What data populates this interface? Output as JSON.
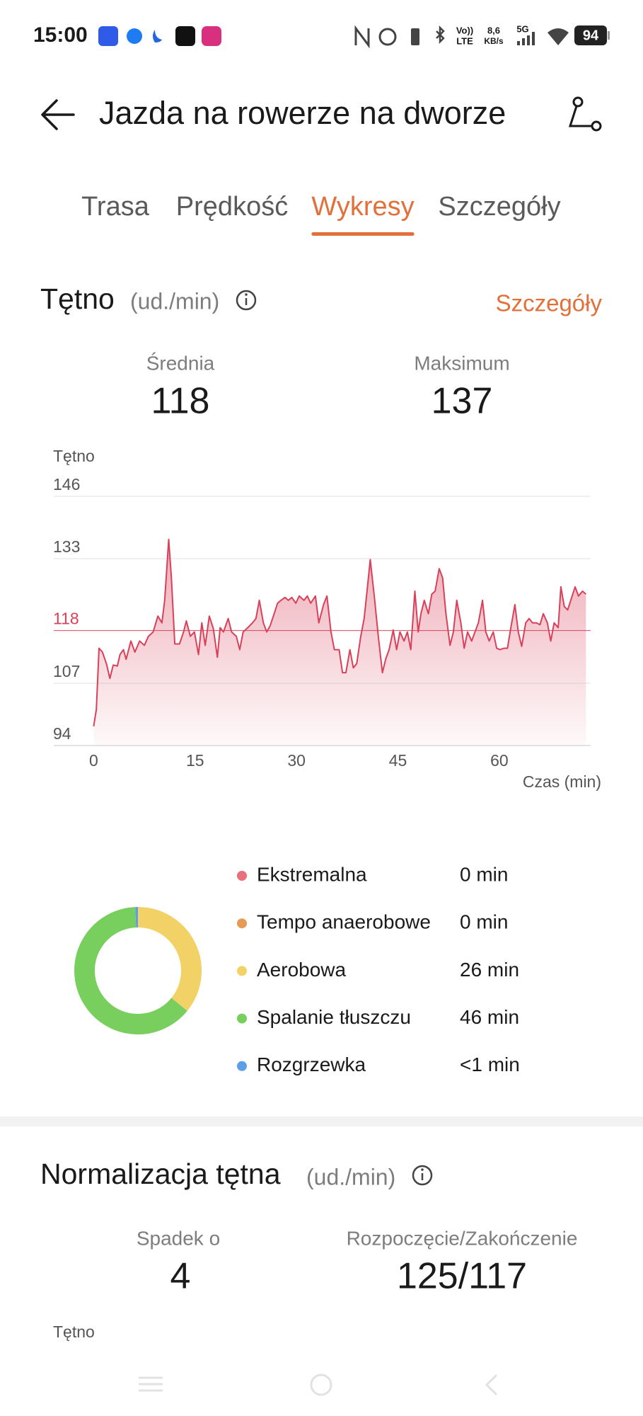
{
  "status_bar": {
    "time": "15:00",
    "vo": "Vo))",
    "lte": "LTE",
    "speed": "8,6",
    "speed_unit": "KB/s",
    "network": "5G",
    "battery": "94"
  },
  "header": {
    "title": "Jazda na rowerze na dworze"
  },
  "tabs": [
    {
      "label": "Trasa"
    },
    {
      "label": "Prędkość"
    },
    {
      "label": "Wykresy"
    },
    {
      "label": "Szczegóły"
    }
  ],
  "active_tab": 2,
  "heart_rate": {
    "title": "Tętno",
    "unit": "(ud./min)",
    "details_link": "Szczegóły",
    "stats": [
      {
        "label": "Średnia",
        "value": 118
      },
      {
        "label": "Maksimum",
        "value": 137
      }
    ]
  },
  "chart_data": [
    {
      "type": "line",
      "y_label": "Tętno",
      "x_label": "Czas (min)",
      "color": "#d9415a",
      "average": 118,
      "average_color": "#d9415a",
      "xlim": [
        -5.9,
        73.5
      ],
      "xticks": [
        0,
        15,
        30,
        45,
        60
      ],
      "ylim": [
        94,
        146
      ],
      "yticks": [
        94,
        107,
        118,
        133,
        146
      ],
      "grid": true,
      "x": [
        0,
        0.4,
        0.8,
        1.3,
        1.9,
        2.4,
        2.9,
        3.5,
        3.9,
        4.4,
        4.8,
        5.5,
        6.1,
        6.8,
        7.5,
        8.1,
        8.8,
        9.5,
        10.1,
        10.5,
        11.1,
        11.5,
        12,
        12.7,
        13.3,
        13.7,
        14.3,
        14.9,
        15.5,
        16,
        16.5,
        17.1,
        17.7,
        18.3,
        18.7,
        19.2,
        19.9,
        20.4,
        21.1,
        21.6,
        22.1,
        22.8,
        23.5,
        24,
        24.5,
        25.1,
        25.6,
        26.1,
        26.7,
        27.2,
        27.7,
        28.3,
        28.8,
        29.3,
        29.9,
        30.4,
        31.1,
        31.6,
        32.1,
        32.8,
        33.3,
        34,
        34.5,
        35.1,
        35.6,
        36.3,
        36.8,
        37.3,
        37.9,
        38.4,
        38.9,
        39.5,
        40,
        40.5,
        40.9,
        41.5,
        42.1,
        42.7,
        43.2,
        43.7,
        44.3,
        44.8,
        45.3,
        45.9,
        46.4,
        46.9,
        47.5,
        48,
        48.4,
        48.9,
        49.5,
        50,
        50.5,
        51.1,
        51.6,
        52.1,
        52.7,
        53.2,
        53.7,
        54.3,
        54.8,
        55.3,
        55.9,
        56.4,
        56.9,
        57.5,
        58,
        58.5,
        59.1,
        59.6,
        60.1,
        60.7,
        61.2,
        61.7,
        62.3,
        62.8,
        63.3,
        63.9,
        64.4,
        64.9,
        65.5,
        66,
        66.5,
        67.1,
        67.6,
        68.1,
        68.7,
        69.1,
        69.6,
        70.1,
        70.7,
        71.2,
        71.7,
        72.3,
        72.8
      ],
      "values": [
        98,
        101.5,
        114.3,
        113.5,
        111,
        108,
        110.8,
        110.6,
        113,
        114,
        112,
        115.8,
        113.5,
        115.8,
        114.9,
        116.8,
        117.7,
        121,
        119.6,
        124.3,
        137,
        129,
        115.2,
        115.2,
        117.7,
        120,
        116.8,
        117.7,
        113,
        119.6,
        114.9,
        121,
        118.4,
        112.4,
        118.6,
        117.7,
        120.5,
        117.7,
        116.8,
        114,
        117.7,
        118.6,
        119.6,
        120.5,
        124.3,
        119.6,
        117.7,
        119,
        121.5,
        123.7,
        124.3,
        124.9,
        124.3,
        124.9,
        123.7,
        125.2,
        124.3,
        125.2,
        123.7,
        125.2,
        119.6,
        123.4,
        125.2,
        117.7,
        114,
        114,
        109.2,
        109.2,
        114,
        110.2,
        111.1,
        116.8,
        120.5,
        127.1,
        132.8,
        125.2,
        116.8,
        109.2,
        112.1,
        114,
        118.1,
        114,
        117.7,
        115.8,
        117.7,
        114,
        126.2,
        117.7,
        121.5,
        124.3,
        121.5,
        125.6,
        126.2,
        130.9,
        129,
        121.5,
        114.9,
        117.7,
        124.3,
        119.6,
        114.3,
        117.7,
        115.8,
        117.7,
        119.6,
        124.3,
        117.7,
        115.8,
        117.7,
        114.3,
        114,
        114.3,
        114.3,
        118.6,
        123.4,
        117.7,
        114.7,
        119.6,
        120.5,
        119.6,
        119.6,
        119.2,
        121.5,
        119.6,
        115.8,
        119.6,
        118.6,
        127.1,
        123,
        122.3,
        124.9,
        127.1,
        125.2,
        126.2,
        125.6
      ]
    },
    {
      "type": "pie",
      "donut": true,
      "categories": [
        "Ekstremalna",
        "Tempo anaerobowe",
        "Aerobowa",
        "Spalanie tłuszczu",
        "Rozgrzewka"
      ],
      "values": [
        0,
        0,
        26,
        46,
        0.5
      ],
      "value_labels": [
        "0 min",
        "0 min",
        "26 min",
        "46 min",
        "<1 min"
      ],
      "colors": [
        "#ea7079",
        "#e79a54",
        "#f2d266",
        "#79cf5e",
        "#5c9fe6"
      ]
    }
  ],
  "normalization": {
    "title": "Normalizacja tętna",
    "unit": "(ud./min)",
    "stats": [
      {
        "label": "Spadek o",
        "value": "4"
      },
      {
        "label": "Rozpoczęcie/Zakończenie",
        "value": "125/117"
      }
    ],
    "chart_label": "Tętno"
  }
}
